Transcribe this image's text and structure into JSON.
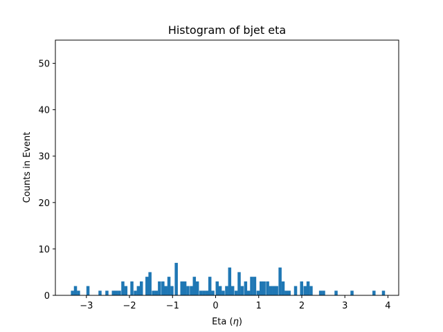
{
  "chart_data": {
    "type": "bar",
    "title": "Histogram of bjet eta",
    "xlabel": "Eta (",
    "xlabel_symbol": "η",
    "xlabel_suffix": ")",
    "ylabel": "Counts in Event",
    "xlim": [
      -3.72,
      4.25
    ],
    "ylim": [
      0,
      55
    ],
    "x_ticks": [
      -3,
      -2,
      -1,
      0,
      1,
      2,
      3,
      4
    ],
    "x_tick_labels": [
      "−3",
      "−2",
      "−1",
      "0",
      "1",
      "2",
      "3",
      "4"
    ],
    "y_ticks": [
      0,
      10,
      20,
      30,
      40,
      50
    ],
    "y_tick_labels": [
      "0",
      "10",
      "20",
      "30",
      "40",
      "50"
    ],
    "grid": false,
    "bin_width": 0.0727,
    "bins": [
      {
        "x": -3.36,
        "value": 1
      },
      {
        "x": -3.29,
        "value": 2
      },
      {
        "x": -3.22,
        "value": 1
      },
      {
        "x": -3.0,
        "value": 2
      },
      {
        "x": -2.72,
        "value": 1
      },
      {
        "x": -2.56,
        "value": 1
      },
      {
        "x": -2.41,
        "value": 1
      },
      {
        "x": -2.34,
        "value": 1
      },
      {
        "x": -2.27,
        "value": 1
      },
      {
        "x": -2.19,
        "value": 3
      },
      {
        "x": -2.12,
        "value": 2
      },
      {
        "x": -1.98,
        "value": 3
      },
      {
        "x": -1.9,
        "value": 1
      },
      {
        "x": -1.83,
        "value": 2
      },
      {
        "x": -1.76,
        "value": 3
      },
      {
        "x": -1.63,
        "value": 4
      },
      {
        "x": -1.56,
        "value": 5
      },
      {
        "x": -1.48,
        "value": 1
      },
      {
        "x": -1.41,
        "value": 1
      },
      {
        "x": -1.34,
        "value": 3
      },
      {
        "x": -1.26,
        "value": 3
      },
      {
        "x": -1.19,
        "value": 2
      },
      {
        "x": -1.12,
        "value": 4
      },
      {
        "x": -1.05,
        "value": 2
      },
      {
        "x": -0.95,
        "value": 7
      },
      {
        "x": -0.82,
        "value": 3
      },
      {
        "x": -0.75,
        "value": 3
      },
      {
        "x": -0.68,
        "value": 2
      },
      {
        "x": -0.6,
        "value": 2
      },
      {
        "x": -0.53,
        "value": 4
      },
      {
        "x": -0.46,
        "value": 3
      },
      {
        "x": -0.38,
        "value": 1
      },
      {
        "x": -0.31,
        "value": 1
      },
      {
        "x": -0.24,
        "value": 1
      },
      {
        "x": -0.17,
        "value": 4
      },
      {
        "x": -0.1,
        "value": 1
      },
      {
        "x": 0.0,
        "value": 3
      },
      {
        "x": 0.07,
        "value": 2
      },
      {
        "x": 0.14,
        "value": 1
      },
      {
        "x": 0.22,
        "value": 2
      },
      {
        "x": 0.29,
        "value": 6
      },
      {
        "x": 0.36,
        "value": 2
      },
      {
        "x": 0.44,
        "value": 1
      },
      {
        "x": 0.51,
        "value": 5
      },
      {
        "x": 0.58,
        "value": 2
      },
      {
        "x": 0.66,
        "value": 3
      },
      {
        "x": 0.73,
        "value": 1
      },
      {
        "x": 0.8,
        "value": 4
      },
      {
        "x": 0.87,
        "value": 4
      },
      {
        "x": 0.95,
        "value": 1
      },
      {
        "x": 1.02,
        "value": 3
      },
      {
        "x": 1.09,
        "value": 3
      },
      {
        "x": 1.17,
        "value": 3
      },
      {
        "x": 1.24,
        "value": 2
      },
      {
        "x": 1.31,
        "value": 2
      },
      {
        "x": 1.38,
        "value": 2
      },
      {
        "x": 1.46,
        "value": 6
      },
      {
        "x": 1.53,
        "value": 3
      },
      {
        "x": 1.6,
        "value": 1
      },
      {
        "x": 1.67,
        "value": 1
      },
      {
        "x": 1.82,
        "value": 2
      },
      {
        "x": 1.96,
        "value": 3
      },
      {
        "x": 2.04,
        "value": 2
      },
      {
        "x": 2.11,
        "value": 3
      },
      {
        "x": 2.18,
        "value": 2
      },
      {
        "x": 2.4,
        "value": 1
      },
      {
        "x": 2.47,
        "value": 1
      },
      {
        "x": 2.76,
        "value": 1
      },
      {
        "x": 3.13,
        "value": 1
      },
      {
        "x": 3.64,
        "value": 1
      },
      {
        "x": 3.86,
        "value": 1
      }
    ],
    "colors": {
      "bar": "#1f77b4",
      "axes": "#000000",
      "background": "#ffffff"
    }
  }
}
